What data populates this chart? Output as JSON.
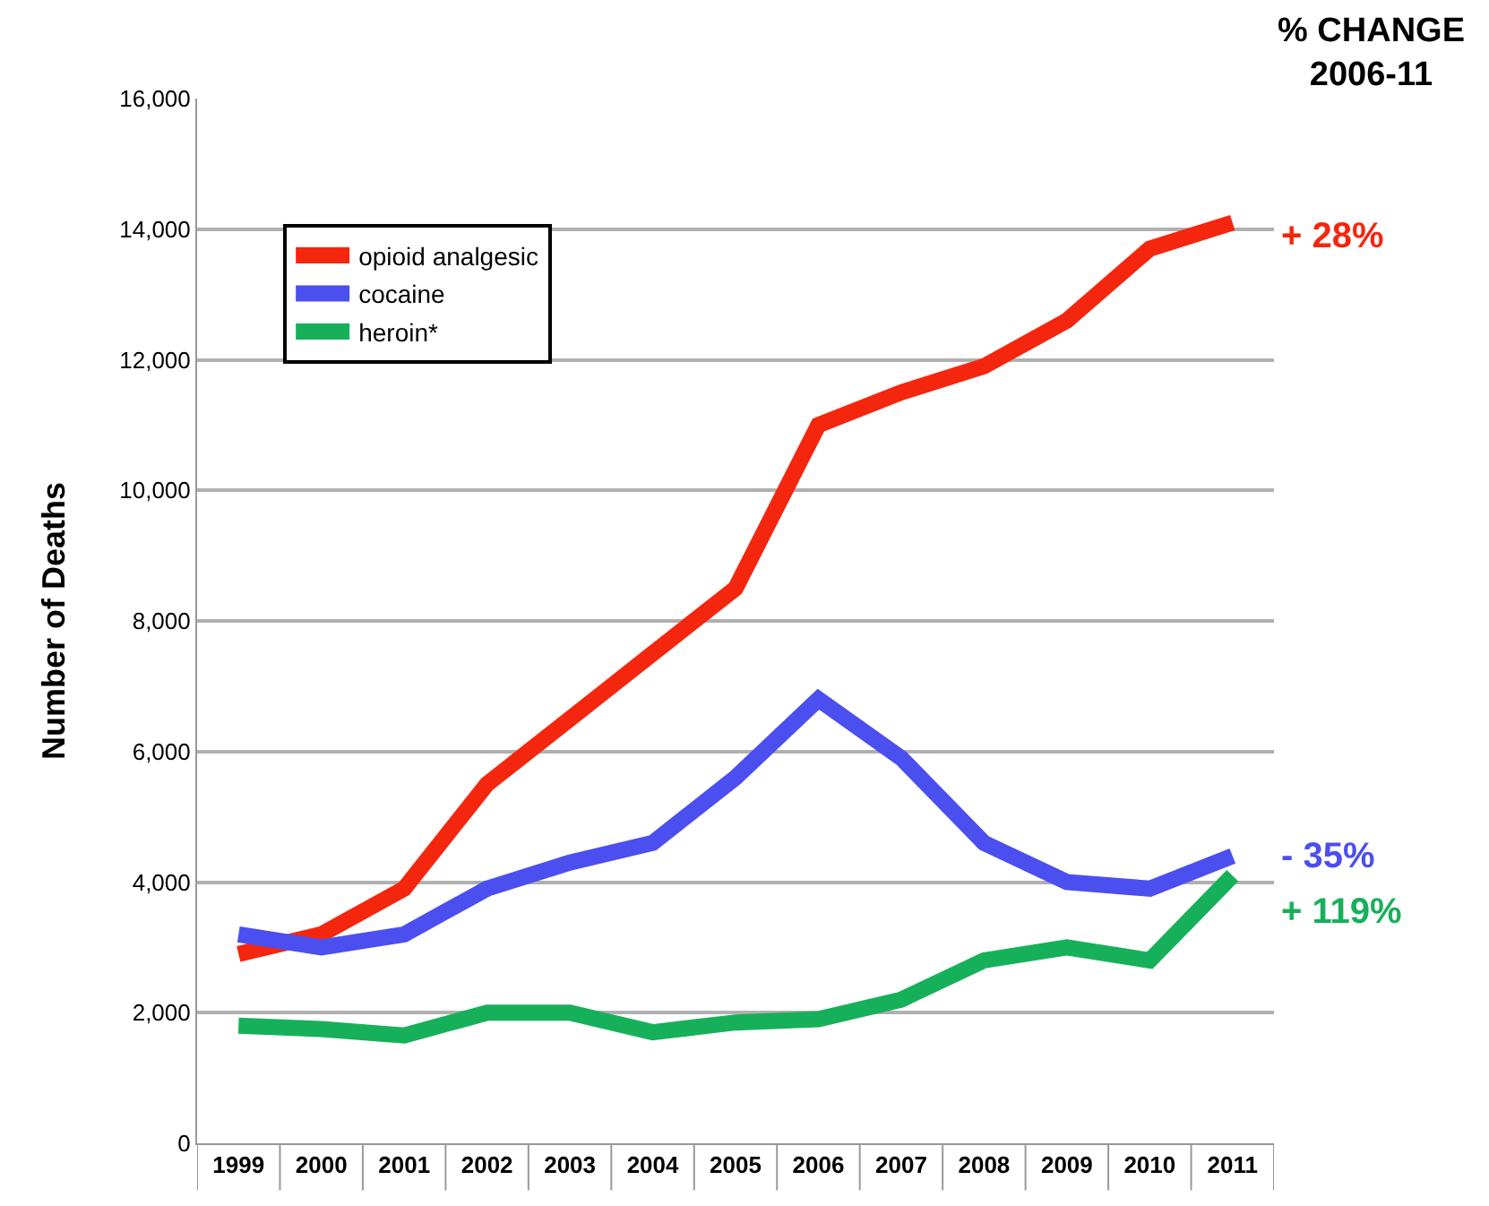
{
  "chart_data": {
    "type": "line",
    "ylabel": "Number of Deaths",
    "categories": [
      "1999",
      "2000",
      "2001",
      "2002",
      "2003",
      "2004",
      "2005",
      "2006",
      "2007",
      "2008",
      "2009",
      "2010",
      "2011"
    ],
    "series": [
      {
        "name": "opioid analgesic",
        "color": "#f5260e",
        "values": [
          2900,
          3200,
          3900,
          5500,
          6500,
          7500,
          8500,
          11000,
          11500,
          11900,
          12600,
          13700,
          14100
        ]
      },
      {
        "name": "cocaine",
        "color": "#4b4ff0",
        "values": [
          3200,
          3000,
          3200,
          3900,
          4300,
          4600,
          5600,
          6800,
          5900,
          4600,
          4000,
          3900,
          4400
        ]
      },
      {
        "name": "heroin*",
        "color": "#17b05a",
        "values": [
          1800,
          1750,
          1650,
          2000,
          2000,
          1700,
          1850,
          1900,
          2200,
          2800,
          3000,
          2800,
          4100
        ]
      }
    ],
    "annotations": [
      "% CHANGE\n2006-11",
      {
        "text": "+ 28%",
        "x": "2011",
        "y": 14100
      },
      {
        "text": "- 35%",
        "x": "2011",
        "y": 4400
      },
      {
        "text": "+ 119%",
        "x": "2011",
        "y": 4100
      }
    ],
    "ylim": [
      0,
      16000
    ],
    "yticks": [
      {
        "value": 0,
        "label": "0"
      },
      {
        "value": 2000,
        "label": "2,000"
      },
      {
        "value": 4000,
        "label": "4,000"
      },
      {
        "value": 6000,
        "label": "6,000"
      },
      {
        "value": 8000,
        "label": "8,000"
      },
      {
        "value": 10000,
        "label": "10,000"
      },
      {
        "value": 12000,
        "label": "12,000"
      },
      {
        "value": 14000,
        "label": "14,000"
      },
      {
        "value": 16000,
        "label": "16,000"
      }
    ],
    "grid": "y",
    "legend": "top left",
    "marker": "none",
    "line_style": "solid"
  }
}
